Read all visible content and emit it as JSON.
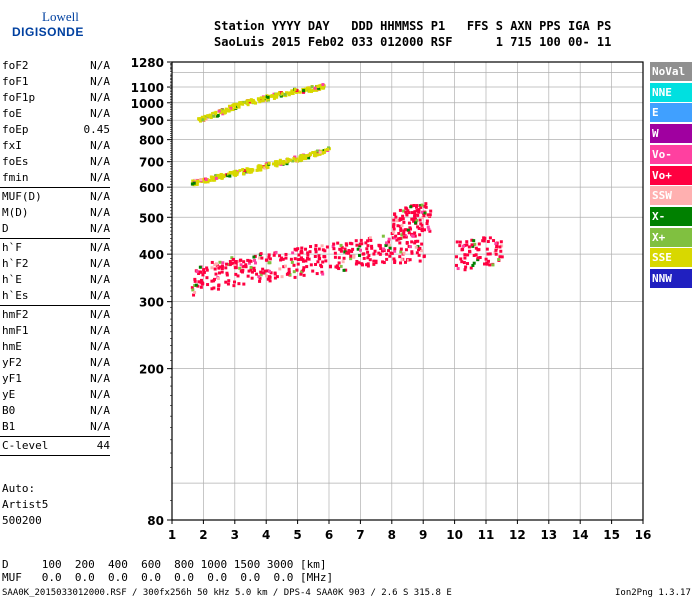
{
  "logo": {
    "line1": "Lowell",
    "line2": "DIGISONDE"
  },
  "header": {
    "row1": "Station YYYY DAY   DDD HHMMSS P1   FFS S AXN PPS IGA PS",
    "row2": "SaoLuis 2015 Feb02 033 012000 RSF      1 715 100 00- 11"
  },
  "params": [
    {
      "group": [
        {
          "name": "foF2",
          "value": "N/A"
        },
        {
          "name": "foF1",
          "value": "N/A"
        },
        {
          "name": "foF1p",
          "value": "N/A"
        },
        {
          "name": "foE",
          "value": "N/A"
        },
        {
          "name": "foEp",
          "value": "0.45"
        },
        {
          "name": "fxI",
          "value": "N/A"
        },
        {
          "name": "foEs",
          "value": "N/A"
        },
        {
          "name": "fmin",
          "value": "N/A"
        }
      ]
    },
    {
      "group": [
        {
          "name": "MUF(D)",
          "value": "N/A"
        },
        {
          "name": "M(D)",
          "value": "N/A"
        },
        {
          "name": "D",
          "value": "N/A"
        }
      ]
    },
    {
      "group": [
        {
          "name": "h`F",
          "value": "N/A"
        },
        {
          "name": "h`F2",
          "value": "N/A"
        },
        {
          "name": "h`E",
          "value": "N/A"
        },
        {
          "name": "h`Es",
          "value": "N/A"
        }
      ]
    },
    {
      "group": [
        {
          "name": "hmF2",
          "value": "N/A"
        },
        {
          "name": "hmF1",
          "value": "N/A"
        },
        {
          "name": "hmE",
          "value": "N/A"
        },
        {
          "name": "yF2",
          "value": "N/A"
        },
        {
          "name": "yF1",
          "value": "N/A"
        },
        {
          "name": "yE",
          "value": "N/A"
        },
        {
          "name": "B0",
          "value": "N/A"
        },
        {
          "name": "B1",
          "value": "N/A"
        }
      ]
    },
    {
      "group": [
        {
          "name": "C-level",
          "value": "44"
        }
      ]
    }
  ],
  "auto": {
    "line1": "Auto:",
    "line2": "Artist5",
    "line3": "500200"
  },
  "legend": [
    {
      "label": "NoVal",
      "color": "#909090"
    },
    {
      "label": "NNE",
      "color": "#00e0e0"
    },
    {
      "label": "E",
      "color": "#40a0ff"
    },
    {
      "label": "W",
      "color": "#a000a0"
    },
    {
      "label": "Vo-",
      "color": "#ff40a0"
    },
    {
      "label": "Vo+",
      "color": "#ff0040"
    },
    {
      "label": "SSW",
      "color": "#ffb0b0"
    },
    {
      "label": "X-",
      "color": "#008000"
    },
    {
      "label": "X+",
      "color": "#80c040"
    },
    {
      "label": "SSE",
      "color": "#d8d800"
    },
    {
      "label": "NNW",
      "color": "#2020c0"
    }
  ],
  "footer": {
    "d_row": "D     100  200  400  600  800 1000 1500 3000 [km]",
    "muf_row": "MUF   0.0  0.0  0.0  0.0  0.0  0.0  0.0  0.0 [MHz]",
    "file_info": "SAA0K_2015033012000.RSF / 300fx256h 50 kHz 5.0 km / DPS-4 SAA0K 903 / 2.6 S 315.8 E",
    "version": "Ion2Png 1.3.17"
  },
  "chart_data": {
    "type": "scatter",
    "title": "",
    "xlabel": "",
    "ylabel": "",
    "xlim": [
      1,
      16
    ],
    "ylim": [
      80,
      1280
    ],
    "y_scale": "log",
    "x_ticks": [
      1,
      2,
      3,
      4,
      5,
      6,
      7,
      8,
      9,
      10,
      11,
      12,
      13,
      14,
      15,
      16
    ],
    "y_ticks": [
      80,
      200,
      300,
      400,
      500,
      600,
      700,
      800,
      900,
      1000,
      1100,
      1280
    ],
    "grid": true,
    "legend_position": "right",
    "traces": [
      {
        "name": "SSE",
        "color": "#d8d800",
        "x": [
          1.8,
          2.2,
          2.6,
          3.0,
          3.5,
          4.0,
          4.5,
          5.0,
          5.5,
          5.8
        ],
        "y": [
          905,
          930,
          960,
          990,
          1015,
          1040,
          1065,
          1085,
          1100,
          1115
        ]
      },
      {
        "name": "SSE",
        "color": "#d8d800",
        "x": [
          1.6,
          2.0,
          2.5,
          3.0,
          3.5,
          4.0,
          4.5,
          5.0,
          5.5,
          6.0
        ],
        "y": [
          620,
          632,
          645,
          660,
          672,
          690,
          705,
          720,
          740,
          760
        ]
      },
      {
        "name": "Vo+",
        "color": "#ff0040",
        "x": [
          1.6,
          2.0,
          2.5,
          3.0,
          3.5,
          4.0,
          4.5,
          5.0,
          5.5,
          6.0,
          6.5,
          7.0,
          7.5,
          8.0,
          8.5,
          9.0
        ],
        "y": [
          330,
          350,
          360,
          365,
          370,
          375,
          380,
          385,
          390,
          395,
          400,
          410,
          415,
          420,
          420,
          420
        ]
      },
      {
        "name": "Vo+",
        "color": "#ff0040",
        "x": [
          8.0,
          8.3,
          8.6,
          8.9,
          9.2
        ],
        "y": [
          470,
          490,
          500,
          505,
          510
        ]
      },
      {
        "name": "Vo+",
        "color": "#ff0040",
        "x": [
          10.0,
          10.5,
          11.0,
          11.5
        ],
        "y": [
          400,
          405,
          410,
          410
        ]
      }
    ]
  }
}
